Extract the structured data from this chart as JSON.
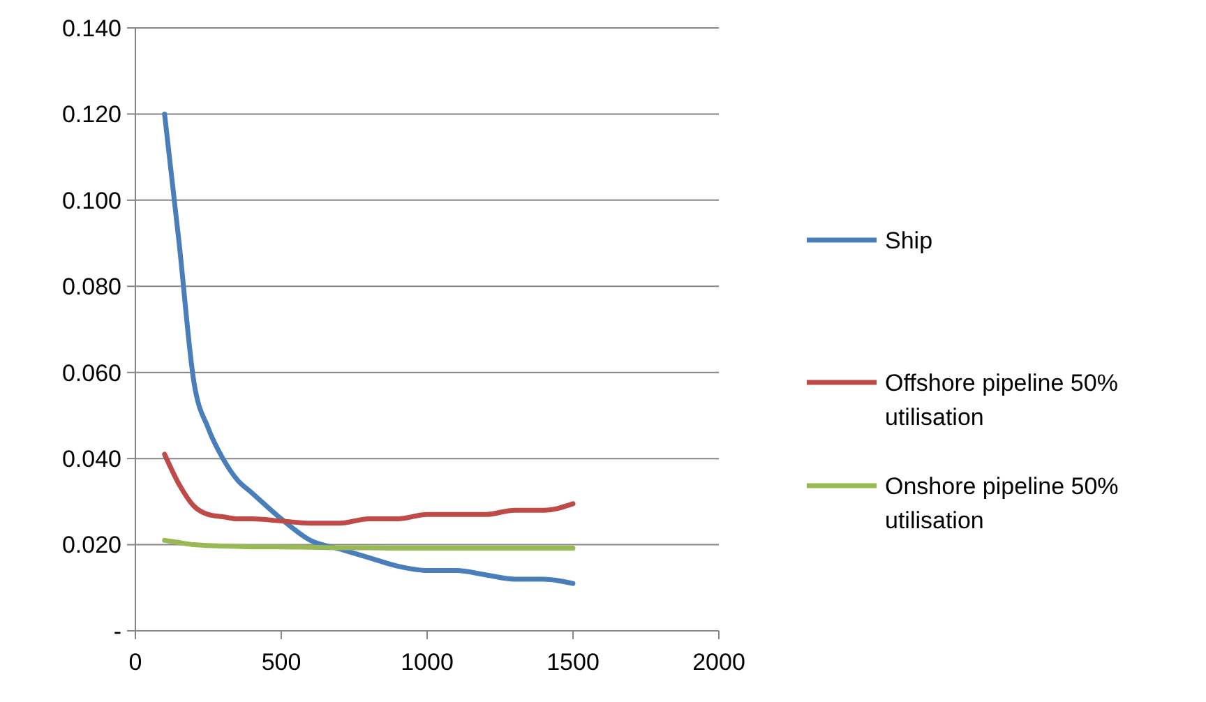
{
  "chart_data": {
    "type": "line",
    "xlim": [
      0,
      2000
    ],
    "xticks": [
      0,
      500,
      1000,
      1500,
      2000
    ],
    "ylim": [
      0,
      0.14
    ],
    "yticks": [
      {
        "value": 0,
        "label": "-"
      },
      {
        "value": 0.02,
        "label": "0.020"
      },
      {
        "value": 0.04,
        "label": "0.040"
      },
      {
        "value": 0.06,
        "label": "0.060"
      },
      {
        "value": 0.08,
        "label": "0.080"
      },
      {
        "value": 0.1,
        "label": "0.100"
      },
      {
        "value": 0.12,
        "label": "0.120"
      },
      {
        "value": 0.14,
        "label": "0.140"
      }
    ],
    "grid": "y",
    "legend": "right",
    "marker": "none",
    "line_style": "solid",
    "x": [
      100,
      150,
      200,
      250,
      300,
      350,
      400,
      500,
      600,
      700,
      800,
      900,
      1000,
      1100,
      1200,
      1300,
      1400,
      1500
    ],
    "series": [
      {
        "name": "Ship",
        "color": "#4a7ebb",
        "values": [
          0.12,
          0.09,
          0.058,
          0.047,
          0.04,
          0.035,
          0.032,
          0.026,
          0.021,
          0.019,
          0.017,
          0.015,
          0.014,
          0.014,
          0.013,
          0.012,
          0.012,
          0.011
        ]
      },
      {
        "name": "Offshore pipeline 50% utilisation",
        "color": "#be4b48",
        "values": [
          0.041,
          0.034,
          0.029,
          0.027,
          0.0265,
          0.026,
          0.026,
          0.0255,
          0.025,
          0.025,
          0.026,
          0.026,
          0.027,
          0.027,
          0.027,
          0.028,
          0.028,
          0.0295
        ]
      },
      {
        "name": "Onshore pipeline 50% utilisation",
        "color": "#98b954",
        "values": [
          0.021,
          0.0205,
          0.02,
          0.0198,
          0.0197,
          0.0196,
          0.0195,
          0.0195,
          0.0194,
          0.0193,
          0.0193,
          0.0192,
          0.0192,
          0.0192,
          0.0192,
          0.0192,
          0.0192,
          0.0192
        ]
      }
    ]
  }
}
